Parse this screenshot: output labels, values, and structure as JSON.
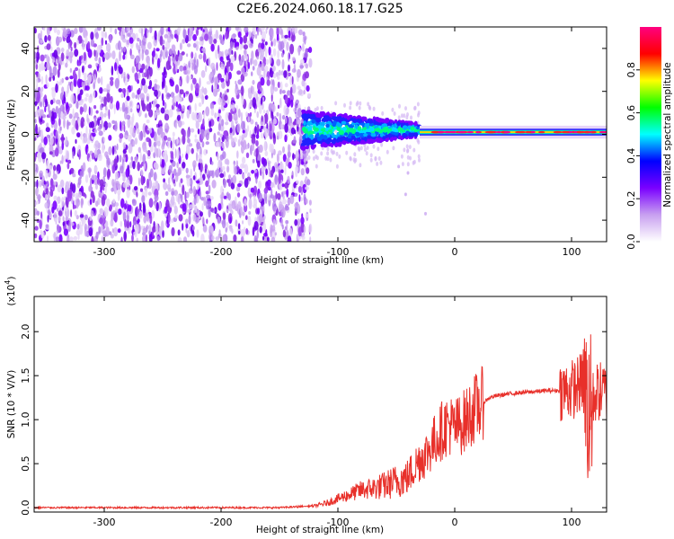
{
  "title": "C2E6.2024.060.18.17.G25",
  "chart_data": [
    {
      "type": "heatmap",
      "title": "C2E6.2024.060.18.17.G25",
      "xlabel": "Height of straight line (km)",
      "ylabel": "Frequency (Hz)",
      "xlim": [
        -360,
        130
      ],
      "ylim": [
        -50,
        50
      ],
      "xticks": [
        -300,
        -200,
        -100,
        0,
        100
      ],
      "yticks": [
        -40,
        -20,
        0,
        20,
        40
      ],
      "colorbar": {
        "label": "Normalized spectral amplitude",
        "range": [
          0,
          1
        ],
        "ticks": [
          "0.0",
          "0.2",
          "0.4",
          "0.6",
          "0.8"
        ],
        "colors": [
          "#ffffff",
          "#c8a0f0",
          "#7a00ff",
          "#0000ff",
          "#00ffff",
          "#00ff00",
          "#ffff00",
          "#ff0000",
          "#ff0080"
        ]
      },
      "regions": [
        {
          "x_range": [
            -360,
            -128
          ],
          "description_value": 0.15,
          "kind": "noise"
        },
        {
          "x_range": [
            -130,
            -30
          ],
          "center_freq": 2,
          "kind": "signal-broad"
        },
        {
          "x_range": [
            -30,
            130
          ],
          "center_freq": 1,
          "kind": "signal-narrow"
        }
      ]
    },
    {
      "type": "line",
      "xlabel": "Height of straight line (km)",
      "ylabel": "SNR (10 * V/V)",
      "ylabel_scale": "(x10",
      "ylabel_exp": "4",
      "xlim": [
        -360,
        130
      ],
      "ylim": [
        -0.05,
        2.4
      ],
      "xticks": [
        -300,
        -200,
        -100,
        0,
        100
      ],
      "yticks": [
        "0.0",
        "0.5",
        "1.0",
        "1.5",
        "2.0"
      ],
      "series_color": "#e8302a",
      "series": [
        {
          "x": [
            -360,
            -300,
            -200,
            -150,
            -120,
            -110,
            -100,
            -90,
            -80,
            -70,
            -60,
            -50,
            -40,
            -35,
            -30,
            -25,
            -20,
            -15,
            -10,
            -5,
            0,
            5,
            10,
            15,
            20,
            25,
            30,
            35,
            40,
            50,
            60,
            70,
            80,
            90,
            100,
            105,
            110,
            112,
            115,
            118,
            120,
            125,
            130
          ],
          "y": [
            0.0,
            0.0,
            0.0,
            0.0,
            0.02,
            0.05,
            0.1,
            0.15,
            0.2,
            0.22,
            0.25,
            0.3,
            0.35,
            0.45,
            0.55,
            0.6,
            0.7,
            0.8,
            0.9,
            0.95,
            0.9,
            0.95,
            1.0,
            1.1,
            1.15,
            1.2,
            1.25,
            1.27,
            1.28,
            1.3,
            1.31,
            1.32,
            1.33,
            1.33,
            1.34,
            1.38,
            1.45,
            1.2,
            1.0,
            1.2,
            1.3,
            1.32,
            1.32
          ]
        }
      ]
    }
  ]
}
